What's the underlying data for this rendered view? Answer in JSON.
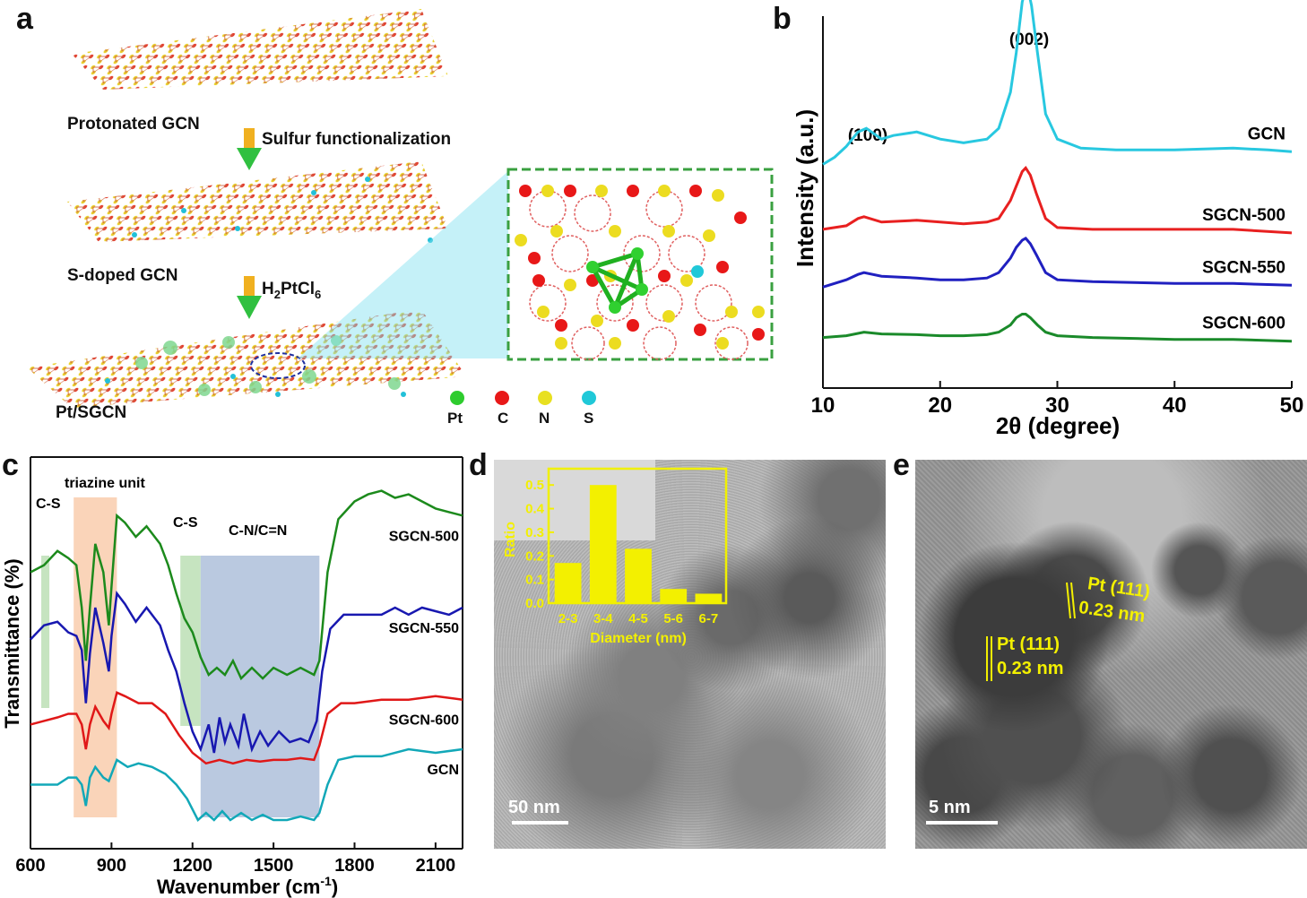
{
  "panel_a": {
    "letter": "a",
    "sheet_labels": [
      "Protonated GCN",
      "S-doped GCN",
      "Pt/SGCN"
    ],
    "step1": "Sulfur  functionalization",
    "step2_main": "H",
    "step2_sub1": "2",
    "step2_mid": "PtCl",
    "step2_sub2": "6",
    "legend": [
      {
        "symbol": "Pt",
        "color": "#2ecc2e"
      },
      {
        "symbol": "C",
        "color": "#e81818"
      },
      {
        "symbol": "N",
        "color": "#e8e020"
      },
      {
        "symbol": "S",
        "color": "#20c8d8"
      }
    ]
  },
  "panel_b": {
    "letter": "b",
    "peak_labels": [
      "(100)",
      "(002)"
    ],
    "chart_data": {
      "type": "line",
      "xlabel": "2θ (degree)",
      "ylabel": "Intensity (a.u.)",
      "xlim": [
        10,
        50
      ],
      "xticks": [
        "10",
        "20",
        "30",
        "40",
        "50"
      ],
      "series": [
        {
          "name": "GCN",
          "color": "#28c8e0",
          "x": [
            10,
            11,
            12,
            13,
            13.7,
            15,
            16,
            18,
            20,
            22,
            24,
            25,
            26,
            26.5,
            27,
            27.4,
            27.8,
            28.3,
            29,
            30,
            32,
            35,
            40,
            45,
            48,
            50
          ],
          "y": [
            0.62,
            0.64,
            0.67,
            0.71,
            0.72,
            0.69,
            0.7,
            0.71,
            0.69,
            0.68,
            0.69,
            0.72,
            0.82,
            0.93,
            1.07,
            1.12,
            1.06,
            0.93,
            0.76,
            0.69,
            0.665,
            0.66,
            0.66,
            0.665,
            0.66,
            0.655
          ]
        },
        {
          "name": "SGCN-500",
          "color": "#e82020",
          "x": [
            10,
            12,
            13,
            13.5,
            15,
            18,
            20,
            22,
            24,
            25,
            26,
            26.5,
            27,
            27.3,
            27.7,
            28.2,
            29,
            30,
            33,
            40,
            45,
            50
          ],
          "y": [
            0.44,
            0.45,
            0.47,
            0.475,
            0.46,
            0.465,
            0.46,
            0.455,
            0.46,
            0.47,
            0.52,
            0.56,
            0.6,
            0.61,
            0.59,
            0.54,
            0.47,
            0.445,
            0.44,
            0.44,
            0.44,
            0.43
          ]
        },
        {
          "name": "SGCN-550",
          "color": "#2020c0",
          "x": [
            10,
            12,
            13,
            13.5,
            15,
            18,
            20,
            22,
            24,
            25,
            26,
            26.5,
            27,
            27.3,
            27.7,
            28.2,
            29,
            30,
            33,
            40,
            45,
            50
          ],
          "y": [
            0.28,
            0.3,
            0.315,
            0.32,
            0.31,
            0.305,
            0.3,
            0.3,
            0.305,
            0.32,
            0.36,
            0.39,
            0.41,
            0.415,
            0.4,
            0.37,
            0.32,
            0.3,
            0.295,
            0.29,
            0.29,
            0.285
          ]
        },
        {
          "name": "SGCN-600",
          "color": "#1a8a2a",
          "x": [
            10,
            12,
            13.5,
            15,
            18,
            20,
            22,
            24,
            25,
            26,
            26.5,
            27,
            27.3,
            27.7,
            28.3,
            29,
            30,
            33,
            40,
            45,
            50
          ],
          "y": [
            0.14,
            0.145,
            0.155,
            0.15,
            0.148,
            0.145,
            0.145,
            0.148,
            0.155,
            0.175,
            0.195,
            0.205,
            0.205,
            0.195,
            0.175,
            0.155,
            0.145,
            0.14,
            0.135,
            0.135,
            0.13
          ]
        }
      ]
    }
  },
  "panel_c": {
    "letter": "c",
    "band_labels": [
      "C-S",
      "triazine unit",
      "C-S",
      "C-N/C=N"
    ],
    "bands": [
      {
        "from": 640,
        "to": 670,
        "color": "#b8ddb0"
      },
      {
        "from": 760,
        "to": 920,
        "color": "#f9c9a8"
      },
      {
        "from": 1155,
        "to": 1230,
        "color": "#b8ddb0"
      },
      {
        "from": 1230,
        "to": 1670,
        "color": "#a9bcd8"
      }
    ],
    "chart_data": {
      "type": "line",
      "xlabel": "Wavenumber (cm",
      "xlabel_sup": "-1",
      "xlabel_end": ")",
      "ylabel": "Transmittance (%)",
      "xlim": [
        600,
        2200
      ],
      "xticks": [
        "600",
        "900",
        "1200",
        "1500",
        "1800",
        "2100"
      ],
      "series": [
        {
          "name": "SGCN-500",
          "color": "#1c8a1c",
          "x": [
            600,
            650,
            700,
            740,
            770,
            790,
            805,
            820,
            840,
            870,
            890,
            900,
            920,
            950,
            990,
            1030,
            1080,
            1110,
            1140,
            1170,
            1200,
            1230,
            1260,
            1290,
            1320,
            1350,
            1380,
            1420,
            1460,
            1500,
            1550,
            1600,
            1650,
            1670,
            1700,
            1740,
            1800,
            1850,
            1900,
            1950,
            2000,
            2050,
            2100,
            2150,
            2200
          ],
          "y": [
            0.7,
            0.72,
            0.76,
            0.74,
            0.72,
            0.6,
            0.45,
            0.6,
            0.78,
            0.7,
            0.55,
            0.66,
            0.86,
            0.84,
            0.8,
            0.83,
            0.78,
            0.72,
            0.64,
            0.57,
            0.53,
            0.46,
            0.41,
            0.43,
            0.41,
            0.45,
            0.4,
            0.43,
            0.4,
            0.43,
            0.41,
            0.43,
            0.41,
            0.45,
            0.7,
            0.85,
            0.9,
            0.92,
            0.93,
            0.91,
            0.92,
            0.9,
            0.88,
            0.87,
            0.86
          ]
        },
        {
          "name": "SGCN-550",
          "color": "#1818b0",
          "x": [
            600,
            650,
            700,
            740,
            770,
            790,
            805,
            820,
            840,
            870,
            890,
            900,
            920,
            950,
            990,
            1030,
            1080,
            1110,
            1140,
            1170,
            1200,
            1230,
            1260,
            1280,
            1300,
            1320,
            1340,
            1370,
            1390,
            1420,
            1450,
            1480,
            1520,
            1560,
            1600,
            1630,
            1660,
            1680,
            1710,
            1760,
            1820,
            1900,
            1950,
            2000,
            2050,
            2100,
            2150,
            2200
          ],
          "y": [
            0.51,
            0.55,
            0.56,
            0.53,
            0.52,
            0.48,
            0.33,
            0.47,
            0.6,
            0.5,
            0.42,
            0.52,
            0.64,
            0.61,
            0.56,
            0.6,
            0.55,
            0.48,
            0.42,
            0.33,
            0.25,
            0.2,
            0.27,
            0.19,
            0.29,
            0.22,
            0.27,
            0.21,
            0.3,
            0.2,
            0.25,
            0.21,
            0.25,
            0.22,
            0.23,
            0.22,
            0.28,
            0.42,
            0.54,
            0.58,
            0.58,
            0.58,
            0.6,
            0.58,
            0.6,
            0.59,
            0.58,
            0.6
          ]
        },
        {
          "name": "SGCN-600",
          "color": "#e01818",
          "x": [
            600,
            650,
            700,
            740,
            770,
            790,
            805,
            820,
            840,
            870,
            890,
            900,
            920,
            950,
            1000,
            1050,
            1100,
            1150,
            1200,
            1250,
            1300,
            1350,
            1400,
            1450,
            1500,
            1550,
            1600,
            1650,
            1670,
            1700,
            1750,
            1800,
            1900,
            2000,
            2100,
            2200
          ],
          "y": [
            0.27,
            0.28,
            0.29,
            0.3,
            0.3,
            0.27,
            0.2,
            0.27,
            0.32,
            0.28,
            0.26,
            0.3,
            0.36,
            0.35,
            0.33,
            0.33,
            0.3,
            0.24,
            0.19,
            0.16,
            0.17,
            0.16,
            0.17,
            0.165,
            0.17,
            0.17,
            0.175,
            0.17,
            0.21,
            0.3,
            0.33,
            0.33,
            0.34,
            0.34,
            0.35,
            0.34
          ]
        },
        {
          "name": "GCN",
          "color": "#12a8b8",
          "x": [
            600,
            650,
            700,
            740,
            770,
            790,
            805,
            820,
            840,
            870,
            890,
            900,
            920,
            960,
            1000,
            1050,
            1100,
            1140,
            1180,
            1220,
            1250,
            1280,
            1310,
            1340,
            1380,
            1420,
            1460,
            1500,
            1550,
            1600,
            1650,
            1670,
            1700,
            1740,
            1800,
            1900,
            2000,
            2100,
            2200
          ],
          "y": [
            0.1,
            0.1,
            0.1,
            0.12,
            0.12,
            0.1,
            0.04,
            0.12,
            0.15,
            0.12,
            0.11,
            0.13,
            0.17,
            0.15,
            0.16,
            0.15,
            0.13,
            0.1,
            0.06,
            0.0,
            0.02,
            0.0,
            0.025,
            0.0,
            0.02,
            0.0,
            0.015,
            0.0,
            0.0,
            0.01,
            0.0,
            0.02,
            0.1,
            0.17,
            0.18,
            0.18,
            0.2,
            0.19,
            0.2
          ]
        }
      ]
    }
  },
  "panel_d": {
    "letter": "d",
    "scale": "50 nm",
    "chart_data": {
      "type": "bar",
      "xlabel": "Diameter (nm)",
      "ylabel": "Ratio",
      "ylim": [
        0,
        0.55
      ],
      "yticks": [
        "0.0",
        "0.1",
        "0.2",
        "0.3",
        "0.4",
        "0.5"
      ],
      "categories": [
        "2-3",
        "3-4",
        "4-5",
        "5-6",
        "6-7"
      ],
      "values": [
        0.17,
        0.5,
        0.23,
        0.06,
        0.04
      ]
    }
  },
  "panel_e": {
    "letter": "e",
    "scale": "5 nm",
    "annotations": [
      {
        "label": "Pt (111)",
        "spacing": "0.23 nm"
      },
      {
        "label": "Pt (111)",
        "spacing": "0.23 nm"
      }
    ]
  }
}
